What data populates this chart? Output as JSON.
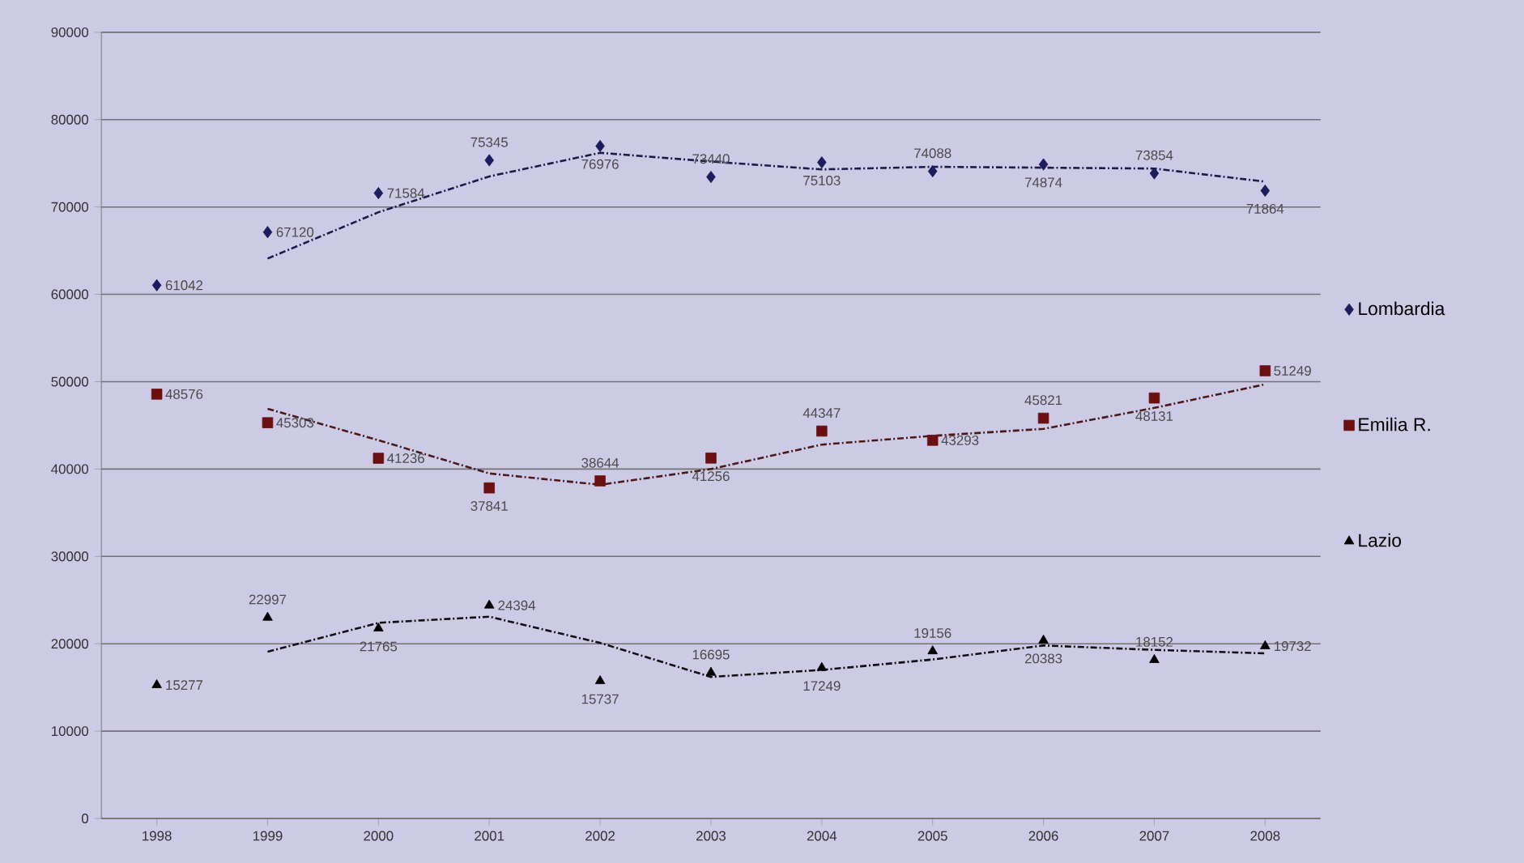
{
  "chart_data": {
    "type": "scatter",
    "x": [
      1998,
      1999,
      2000,
      2001,
      2002,
      2003,
      2004,
      2005,
      2006,
      2007,
      2008
    ],
    "xlim": [
      1997.5,
      2008.5
    ],
    "xticks": [
      1998,
      1999,
      2000,
      2001,
      2002,
      2003,
      2004,
      2005,
      2006,
      2007,
      2008
    ],
    "ylim": [
      0,
      90000
    ],
    "yticks": [
      0,
      10000,
      20000,
      30000,
      40000,
      50000,
      60000,
      70000,
      80000,
      90000
    ],
    "grid": "y",
    "legend": "right",
    "series": [
      {
        "name": "Lombardia",
        "color": "#1c1c5e",
        "marker": "diamond",
        "values": [
          61042,
          67120,
          71584,
          75345,
          76976,
          73440,
          75103,
          74088,
          74874,
          73854,
          71864
        ],
        "value_labels": [
          "61042",
          "67120",
          "71584",
          "75345",
          "76976",
          "73440",
          "75103",
          "74088",
          "74874",
          "73854",
          "71864"
        ]
      },
      {
        "name": "Emilia R.",
        "color": "#6b1010",
        "marker": "square",
        "values": [
          48576,
          45303,
          41236,
          37841,
          38644,
          41256,
          44347,
          43293,
          45821,
          48131,
          51249
        ],
        "value_labels": [
          "48576",
          "45303",
          "41236",
          "37841",
          "38644",
          "41256",
          "44347",
          "43293",
          "45821",
          "48131",
          "51249"
        ]
      },
      {
        "name": "Lazio",
        "color": "#000000",
        "marker": "triangle",
        "values": [
          15277,
          22997,
          21765,
          24394,
          15737,
          16695,
          17249,
          19156,
          20383,
          18152,
          19732
        ],
        "value_labels": [
          "15277",
          "22997",
          "21765",
          "24394",
          "15737",
          "16695",
          "17249",
          "19156",
          "20383",
          "18152",
          "19732"
        ]
      },
      {
        "type": "line",
        "color": "#1c1c4a",
        "line_style": "dashed",
        "x": [
          1999,
          2000,
          2001,
          2002,
          2003,
          2004,
          2005,
          2006,
          2007,
          2008
        ],
        "values": [
          64100,
          69400,
          73500,
          76200,
          75200,
          74300,
          74600,
          74500,
          74400,
          72900
        ]
      },
      {
        "type": "line",
        "color": "#4a1a1a",
        "line_style": "dashed",
        "x": [
          1999,
          2000,
          2001,
          2002,
          2003,
          2004,
          2005,
          2006,
          2007,
          2008
        ],
        "values": [
          46900,
          43300,
          39500,
          38200,
          40000,
          42800,
          43800,
          44600,
          47000,
          49700
        ]
      },
      {
        "type": "line",
        "color": "#111111",
        "line_style": "dashed",
        "x": [
          1999,
          2000,
          2001,
          2002,
          2003,
          2004,
          2005,
          2006,
          2007,
          2008
        ],
        "values": [
          19100,
          22400,
          23100,
          20100,
          16200,
          17000,
          18200,
          19800,
          19300,
          18900
        ]
      }
    ]
  }
}
